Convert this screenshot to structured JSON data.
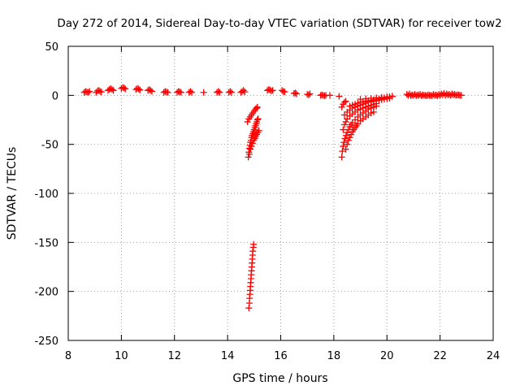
{
  "chart_data": {
    "type": "scatter",
    "title": "Day 272 of 2014, Sidereal Day-to-day VTEC variation (SDTVAR) for receiver tow2",
    "xlabel": "GPS time / hours",
    "ylabel": "SDTVAR / TECUs",
    "xlim": [
      8,
      24
    ],
    "ylim": [
      -250,
      50
    ],
    "xticks": [
      8,
      10,
      12,
      14,
      16,
      18,
      20,
      22,
      24
    ],
    "yticks": [
      50,
      0,
      -50,
      -100,
      -150,
      -200,
      -250
    ],
    "grid": true,
    "marker": "+",
    "color": "#ff0000",
    "series": [
      {
        "name": "SDTVAR",
        "points": [
          [
            8.6,
            3
          ],
          [
            8.65,
            4
          ],
          [
            8.7,
            3.5
          ],
          [
            8.75,
            3
          ],
          [
            8.8,
            4
          ],
          [
            9.05,
            3
          ],
          [
            9.1,
            4.5
          ],
          [
            9.15,
            5
          ],
          [
            9.2,
            4
          ],
          [
            9.25,
            3.5
          ],
          [
            9.5,
            5
          ],
          [
            9.55,
            6
          ],
          [
            9.6,
            7
          ],
          [
            9.65,
            6
          ],
          [
            9.7,
            5
          ],
          [
            10.0,
            7
          ],
          [
            10.05,
            8
          ],
          [
            10.1,
            7.5
          ],
          [
            10.15,
            6.5
          ],
          [
            10.55,
            6
          ],
          [
            10.6,
            7
          ],
          [
            10.65,
            6.5
          ],
          [
            10.7,
            5.5
          ],
          [
            11.0,
            5
          ],
          [
            11.05,
            6
          ],
          [
            11.1,
            5
          ],
          [
            11.15,
            4
          ],
          [
            11.6,
            3
          ],
          [
            11.65,
            4
          ],
          [
            11.7,
            3.5
          ],
          [
            11.75,
            3
          ],
          [
            12.1,
            3
          ],
          [
            12.15,
            4
          ],
          [
            12.2,
            3.5
          ],
          [
            12.25,
            3
          ],
          [
            12.55,
            3
          ],
          [
            12.6,
            4
          ],
          [
            12.65,
            3
          ],
          [
            13.1,
            3
          ],
          [
            13.6,
            3
          ],
          [
            13.65,
            4
          ],
          [
            13.7,
            3
          ],
          [
            14.05,
            3
          ],
          [
            14.1,
            4
          ],
          [
            14.15,
            3
          ],
          [
            14.5,
            3
          ],
          [
            14.55,
            4
          ],
          [
            14.6,
            5
          ],
          [
            14.65,
            3.5
          ],
          [
            15.5,
            5
          ],
          [
            15.55,
            6
          ],
          [
            15.6,
            5.5
          ],
          [
            15.65,
            4.5
          ],
          [
            15.7,
            5
          ],
          [
            16.05,
            5
          ],
          [
            16.1,
            4
          ],
          [
            16.15,
            3.5
          ],
          [
            16.5,
            2
          ],
          [
            16.55,
            2.5
          ],
          [
            16.6,
            1.5
          ],
          [
            17.0,
            1
          ],
          [
            17.05,
            0.5
          ],
          [
            17.1,
            1.5
          ],
          [
            17.5,
            0
          ],
          [
            17.55,
            0.5
          ],
          [
            17.6,
            0
          ],
          [
            17.65,
            -0.5
          ],
          [
            17.7,
            0
          ],
          [
            17.85,
            0
          ],
          [
            18.2,
            -1
          ],
          [
            14.75,
            -27
          ],
          [
            14.8,
            -24
          ],
          [
            14.85,
            -22
          ],
          [
            14.9,
            -20
          ],
          [
            14.95,
            -18
          ],
          [
            15.0,
            -16
          ],
          [
            15.05,
            -14
          ],
          [
            15.1,
            -13
          ],
          [
            15.12,
            -12
          ],
          [
            14.78,
            -63
          ],
          [
            14.8,
            -58
          ],
          [
            14.82,
            -54
          ],
          [
            14.84,
            -51
          ],
          [
            14.86,
            -48
          ],
          [
            14.88,
            -46
          ],
          [
            14.9,
            -43
          ],
          [
            14.92,
            -41
          ],
          [
            14.95,
            -39
          ],
          [
            14.98,
            -37
          ],
          [
            15.0,
            -35
          ],
          [
            15.03,
            -33
          ],
          [
            15.05,
            -31
          ],
          [
            15.08,
            -29
          ],
          [
            15.1,
            -27
          ],
          [
            15.12,
            -25
          ],
          [
            15.15,
            -24
          ],
          [
            14.82,
            -60
          ],
          [
            14.86,
            -55
          ],
          [
            14.9,
            -52
          ],
          [
            14.94,
            -49
          ],
          [
            14.98,
            -46
          ],
          [
            15.02,
            -44
          ],
          [
            15.06,
            -42
          ],
          [
            15.1,
            -40
          ],
          [
            15.14,
            -38
          ],
          [
            15.18,
            -36
          ],
          [
            14.8,
            -217
          ],
          [
            14.82,
            -212
          ],
          [
            14.83,
            -207
          ],
          [
            14.84,
            -203
          ],
          [
            14.85,
            -199
          ],
          [
            14.86,
            -195
          ],
          [
            14.87,
            -191
          ],
          [
            14.88,
            -187
          ],
          [
            14.89,
            -183
          ],
          [
            14.9,
            -179
          ],
          [
            14.91,
            -175
          ],
          [
            14.92,
            -171
          ],
          [
            14.93,
            -167
          ],
          [
            14.94,
            -163
          ],
          [
            14.95,
            -159
          ],
          [
            14.97,
            -155
          ],
          [
            14.98,
            -152
          ],
          [
            18.3,
            -12
          ],
          [
            18.35,
            -9
          ],
          [
            18.4,
            -7
          ],
          [
            18.45,
            -6
          ],
          [
            18.3,
            -63
          ],
          [
            18.32,
            -57
          ],
          [
            18.35,
            -52
          ],
          [
            18.38,
            -48
          ],
          [
            18.42,
            -44
          ],
          [
            18.46,
            -41
          ],
          [
            18.5,
            -38
          ],
          [
            18.55,
            -35
          ],
          [
            18.6,
            -32
          ],
          [
            18.65,
            -30
          ],
          [
            18.7,
            -28
          ],
          [
            18.8,
            -25
          ],
          [
            18.9,
            -22
          ],
          [
            19.0,
            -20
          ],
          [
            19.1,
            -18
          ],
          [
            19.2,
            -16
          ],
          [
            19.3,
            -14
          ],
          [
            19.4,
            -13
          ],
          [
            19.5,
            -12
          ],
          [
            19.6,
            -11
          ],
          [
            18.35,
            -35
          ],
          [
            18.4,
            -30
          ],
          [
            18.45,
            -27
          ],
          [
            18.5,
            -24
          ],
          [
            18.6,
            -21
          ],
          [
            18.7,
            -19
          ],
          [
            18.8,
            -17
          ],
          [
            18.9,
            -15
          ],
          [
            19.0,
            -14
          ],
          [
            19.1,
            -13
          ],
          [
            19.2,
            -12
          ],
          [
            19.3,
            -11
          ],
          [
            19.4,
            -10
          ],
          [
            19.5,
            -9
          ],
          [
            19.6,
            -8.5
          ],
          [
            18.4,
            -20
          ],
          [
            18.5,
            -17
          ],
          [
            18.6,
            -15
          ],
          [
            18.7,
            -13
          ],
          [
            18.8,
            -12
          ],
          [
            18.9,
            -11
          ],
          [
            19.0,
            -10
          ],
          [
            19.1,
            -9
          ],
          [
            19.2,
            -8
          ],
          [
            19.3,
            -7
          ],
          [
            19.4,
            -6.5
          ],
          [
            19.5,
            -6
          ],
          [
            19.6,
            -5.5
          ],
          [
            19.7,
            -5
          ],
          [
            19.8,
            -4.5
          ],
          [
            19.9,
            -4
          ],
          [
            20.0,
            -3.5
          ],
          [
            20.1,
            -3
          ],
          [
            18.6,
            -11
          ],
          [
            18.7,
            -10
          ],
          [
            18.8,
            -9
          ],
          [
            18.9,
            -8
          ],
          [
            19.0,
            -7
          ],
          [
            19.1,
            -6.5
          ],
          [
            19.2,
            -6
          ],
          [
            19.3,
            -5.5
          ],
          [
            19.4,
            -5
          ],
          [
            19.5,
            -4.5
          ],
          [
            19.6,
            -4
          ],
          [
            19.7,
            -3.5
          ],
          [
            19.8,
            -3
          ],
          [
            19.9,
            -2.5
          ],
          [
            20.0,
            -2
          ],
          [
            20.1,
            -1.5
          ],
          [
            20.2,
            -1
          ],
          [
            19.0,
            -4
          ],
          [
            19.2,
            -3.5
          ],
          [
            19.4,
            -3
          ],
          [
            19.6,
            -2.5
          ],
          [
            19.8,
            -2
          ],
          [
            20.0,
            -1.5
          ],
          [
            20.2,
            -1
          ],
          [
            18.45,
            -55
          ],
          [
            18.5,
            -50
          ],
          [
            18.55,
            -46
          ],
          [
            18.6,
            -43
          ],
          [
            18.65,
            -40
          ],
          [
            18.7,
            -37
          ],
          [
            18.75,
            -35
          ],
          [
            18.8,
            -33
          ],
          [
            18.85,
            -31
          ],
          [
            18.9,
            -29
          ],
          [
            19.0,
            -26
          ],
          [
            19.1,
            -24
          ],
          [
            19.2,
            -22
          ],
          [
            19.3,
            -20
          ],
          [
            19.4,
            -18
          ],
          [
            19.5,
            -17
          ],
          [
            20.75,
            1
          ],
          [
            20.85,
            1.5
          ],
          [
            20.95,
            0.5
          ],
          [
            21.05,
            1
          ],
          [
            21.15,
            0.5
          ],
          [
            21.25,
            1
          ],
          [
            21.35,
            0.5
          ],
          [
            21.45,
            0
          ],
          [
            21.55,
            0.5
          ],
          [
            21.65,
            0
          ],
          [
            21.75,
            1
          ],
          [
            21.85,
            0.5
          ],
          [
            21.95,
            1
          ],
          [
            22.05,
            1.5
          ],
          [
            22.15,
            2
          ],
          [
            22.25,
            1.5
          ],
          [
            22.35,
            1
          ],
          [
            22.45,
            1.5
          ],
          [
            22.55,
            1
          ],
          [
            22.65,
            0.5
          ],
          [
            22.75,
            0
          ],
          [
            20.8,
            0
          ],
          [
            20.9,
            -0.5
          ],
          [
            21.0,
            0
          ],
          [
            21.1,
            -0.5
          ],
          [
            21.2,
            0
          ],
          [
            21.3,
            -0.5
          ],
          [
            21.4,
            0
          ],
          [
            21.5,
            -0.5
          ],
          [
            21.6,
            0
          ],
          [
            21.7,
            -0.5
          ],
          [
            21.8,
            0
          ],
          [
            21.9,
            -0.5
          ],
          [
            22.0,
            0
          ],
          [
            22.1,
            0.5
          ],
          [
            22.2,
            0
          ],
          [
            22.3,
            0.5
          ],
          [
            22.4,
            0
          ],
          [
            22.5,
            0.5
          ],
          [
            22.6,
            0
          ],
          [
            22.7,
            0.5
          ],
          [
            22.8,
            0
          ]
        ]
      }
    ]
  }
}
